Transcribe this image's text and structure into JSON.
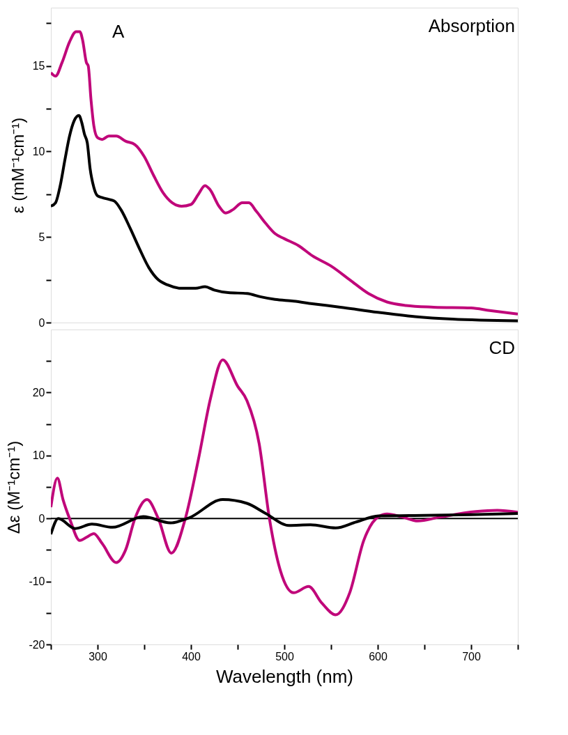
{
  "chart_data": [
    {
      "type": "line",
      "ylabel": "ε (mM⁻¹cm⁻¹)",
      "annotations": [
        "A",
        "Absorption"
      ],
      "xlim": [
        250,
        750
      ],
      "ylim": [
        0,
        18.4
      ],
      "yticks": [
        0,
        {
          "value": 2.5,
          "label": null
        },
        5,
        {
          "value": 7.5,
          "label": null
        },
        10,
        {
          "value": 12.5,
          "label": null
        },
        15,
        {
          "value": 17.5,
          "label": null
        }
      ],
      "tick_labels": "y",
      "series": [
        {
          "color": "#c0077a",
          "x": [
            250,
            255,
            262,
            270,
            277,
            281,
            284,
            288,
            290,
            293,
            296,
            300,
            305,
            312,
            320,
            330,
            340,
            350,
            360,
            370,
            380,
            390,
            400,
            408,
            415,
            420,
            430,
            437,
            445,
            455,
            462,
            470,
            480,
            490,
            500,
            515,
            530,
            550,
            570,
            590,
            610,
            630,
            660,
            700,
            720,
            750
          ],
          "values": [
            14.6,
            14.4,
            15.2,
            16.4,
            17.0,
            17.0,
            16.5,
            15.2,
            15.0,
            13.0,
            11.5,
            10.8,
            10.7,
            10.9,
            10.9,
            10.6,
            10.4,
            9.7,
            8.6,
            7.6,
            7.0,
            6.8,
            6.9,
            7.5,
            8.0,
            7.8,
            6.8,
            6.4,
            6.6,
            7.0,
            7.0,
            6.5,
            5.8,
            5.2,
            4.9,
            4.5,
            3.9,
            3.3,
            2.5,
            1.7,
            1.2,
            1.0,
            0.9,
            0.85,
            0.7,
            0.5
          ]
        },
        {
          "color": "#000000",
          "x": [
            250,
            255,
            260,
            265,
            270,
            275,
            280,
            283,
            286,
            289,
            292,
            296,
            300,
            305,
            312,
            318,
            325,
            335,
            345,
            355,
            365,
            375,
            390,
            405,
            415,
            425,
            440,
            460,
            475,
            490,
            510,
            530,
            560,
            600,
            640,
            680,
            750
          ],
          "values": [
            6.8,
            7.0,
            8.0,
            9.5,
            10.9,
            11.8,
            12.1,
            11.7,
            11.0,
            10.5,
            9.0,
            7.9,
            7.4,
            7.3,
            7.2,
            7.1,
            6.6,
            5.5,
            4.3,
            3.2,
            2.5,
            2.2,
            2.0,
            2.0,
            2.1,
            1.9,
            1.75,
            1.7,
            1.5,
            1.35,
            1.25,
            1.1,
            0.9,
            0.6,
            0.35,
            0.2,
            0.1
          ]
        }
      ]
    },
    {
      "type": "line",
      "xlabel": "Wavelength (nm)",
      "ylabel": "Δε (M⁻¹cm⁻¹)",
      "annotations": [
        "CD"
      ],
      "xlim": [
        250,
        750
      ],
      "xticks": [
        {
          "value": 250,
          "label": null
        },
        300,
        {
          "value": 350,
          "label": null
        },
        400,
        {
          "value": 450,
          "label": null
        },
        500,
        {
          "value": 550,
          "label": null
        },
        600,
        {
          "value": 650,
          "label": null
        },
        700,
        {
          "value": 750,
          "label": null
        }
      ],
      "ylim": [
        -20,
        30
      ],
      "yticks": [
        -20,
        {
          "value": -15,
          "label": null
        },
        -10,
        {
          "value": -5,
          "label": null
        },
        0,
        {
          "value": 5,
          "label": null
        },
        10,
        {
          "value": 15,
          "label": null
        },
        20,
        {
          "value": 25,
          "label": null
        }
      ],
      "ref_lines": [
        {
          "axis": "y",
          "value": 0,
          "color": "#000000"
        }
      ],
      "series": [
        {
          "color": "#c0077a",
          "x": [
            250,
            257,
            263,
            270,
            281,
            288,
            296,
            305,
            320,
            330,
            340,
            353,
            365,
            379,
            394,
            408,
            421,
            434,
            450,
            460,
            473,
            484,
            496,
            510,
            526,
            540,
            555,
            570,
            585,
            601,
            610,
            625,
            643,
            666,
            705,
            728,
            750
          ],
          "values": [
            1.8,
            6.4,
            3.0,
            0.0,
            -3.5,
            -3.0,
            -2.4,
            -4.0,
            -7.0,
            -5.0,
            0.0,
            3.0,
            0.0,
            -5.5,
            0.0,
            9.4,
            19.1,
            25.2,
            21.0,
            18.7,
            11.9,
            0.0,
            -8.4,
            -11.8,
            -10.8,
            -13.4,
            -15.3,
            -11.8,
            -3.5,
            0.3,
            0.7,
            0.3,
            -0.4,
            0.2,
            1.1,
            1.3,
            1.0
          ]
        },
        {
          "color": "#000000",
          "x": [
            250,
            258,
            276,
            294,
            316,
            349,
            378,
            398,
            434,
            460,
            480,
            505,
            528,
            555,
            576,
            601,
            650,
            700,
            750
          ],
          "values": [
            -2.5,
            0.0,
            -1.6,
            -0.9,
            -1.4,
            0.3,
            -0.7,
            0.1,
            3.0,
            2.4,
            0.8,
            -1.1,
            -1.0,
            -1.5,
            -0.6,
            0.4,
            0.5,
            0.6,
            0.8
          ]
        }
      ]
    }
  ]
}
